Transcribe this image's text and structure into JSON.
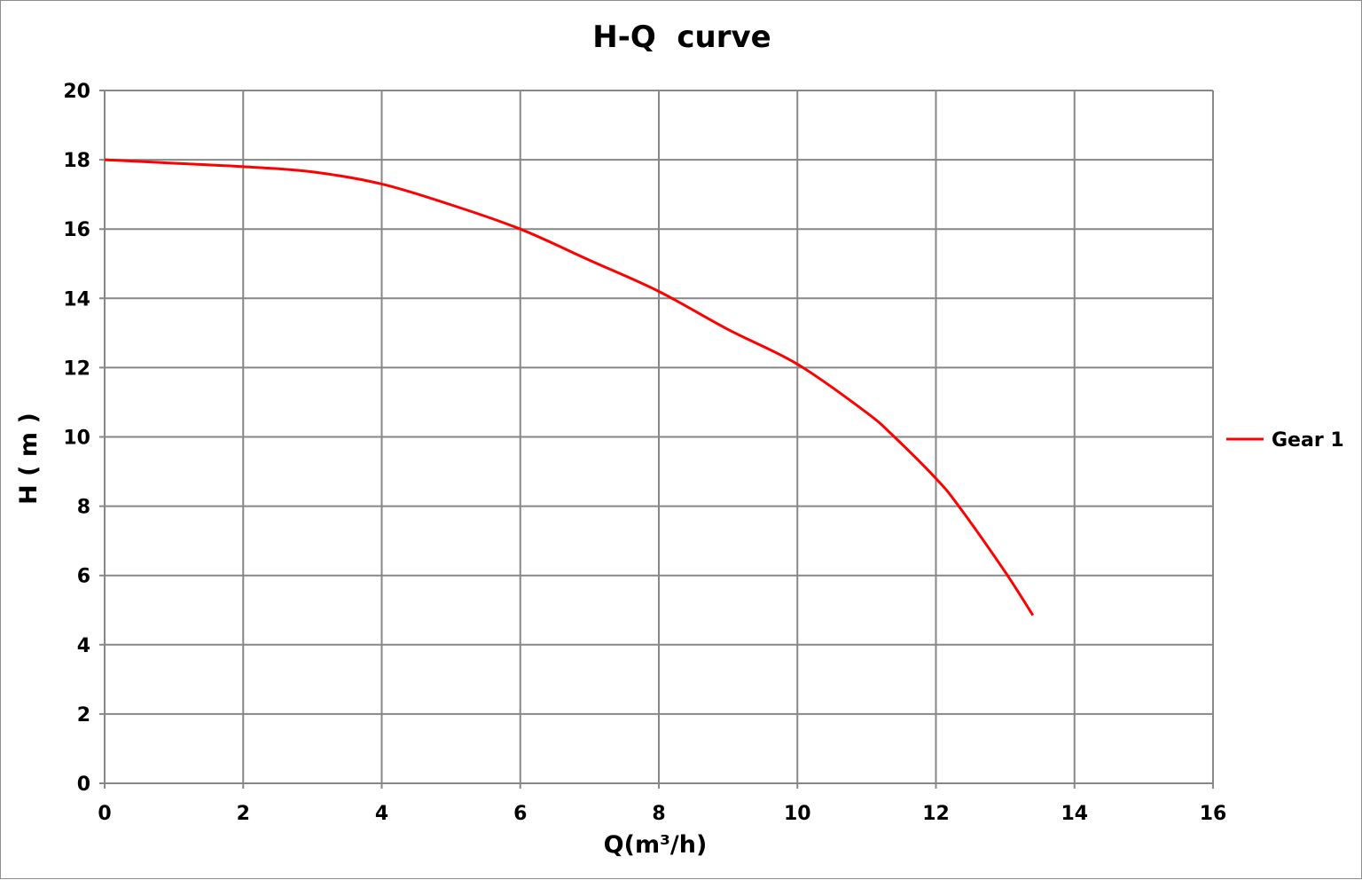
{
  "chart_data": {
    "type": "line",
    "title": "H-Q  curve",
    "xlabel": "Q(m³/h)",
    "ylabel": "H ( m )",
    "xlim": [
      0,
      16
    ],
    "ylim": [
      0,
      20
    ],
    "xticks": [
      0,
      2,
      4,
      6,
      8,
      10,
      12,
      14,
      16
    ],
    "yticks": [
      0,
      2,
      4,
      6,
      8,
      10,
      12,
      14,
      16,
      18,
      20
    ],
    "grid": true,
    "legend_position": "right",
    "series": [
      {
        "name": "Gear 1",
        "color": "#ff0000",
        "x": [
          0,
          1,
          2,
          3,
          4,
          5,
          6,
          7,
          8,
          9,
          10,
          11,
          11.4,
          12,
          12.33,
          13,
          13.4
        ],
        "y": [
          18,
          17.9,
          17.8,
          17.65,
          17.3,
          16.7,
          16.0,
          15.1,
          14.2,
          13.1,
          12.1,
          10.7,
          10.0,
          8.8,
          8.0,
          6.1,
          4.85
        ]
      }
    ]
  }
}
